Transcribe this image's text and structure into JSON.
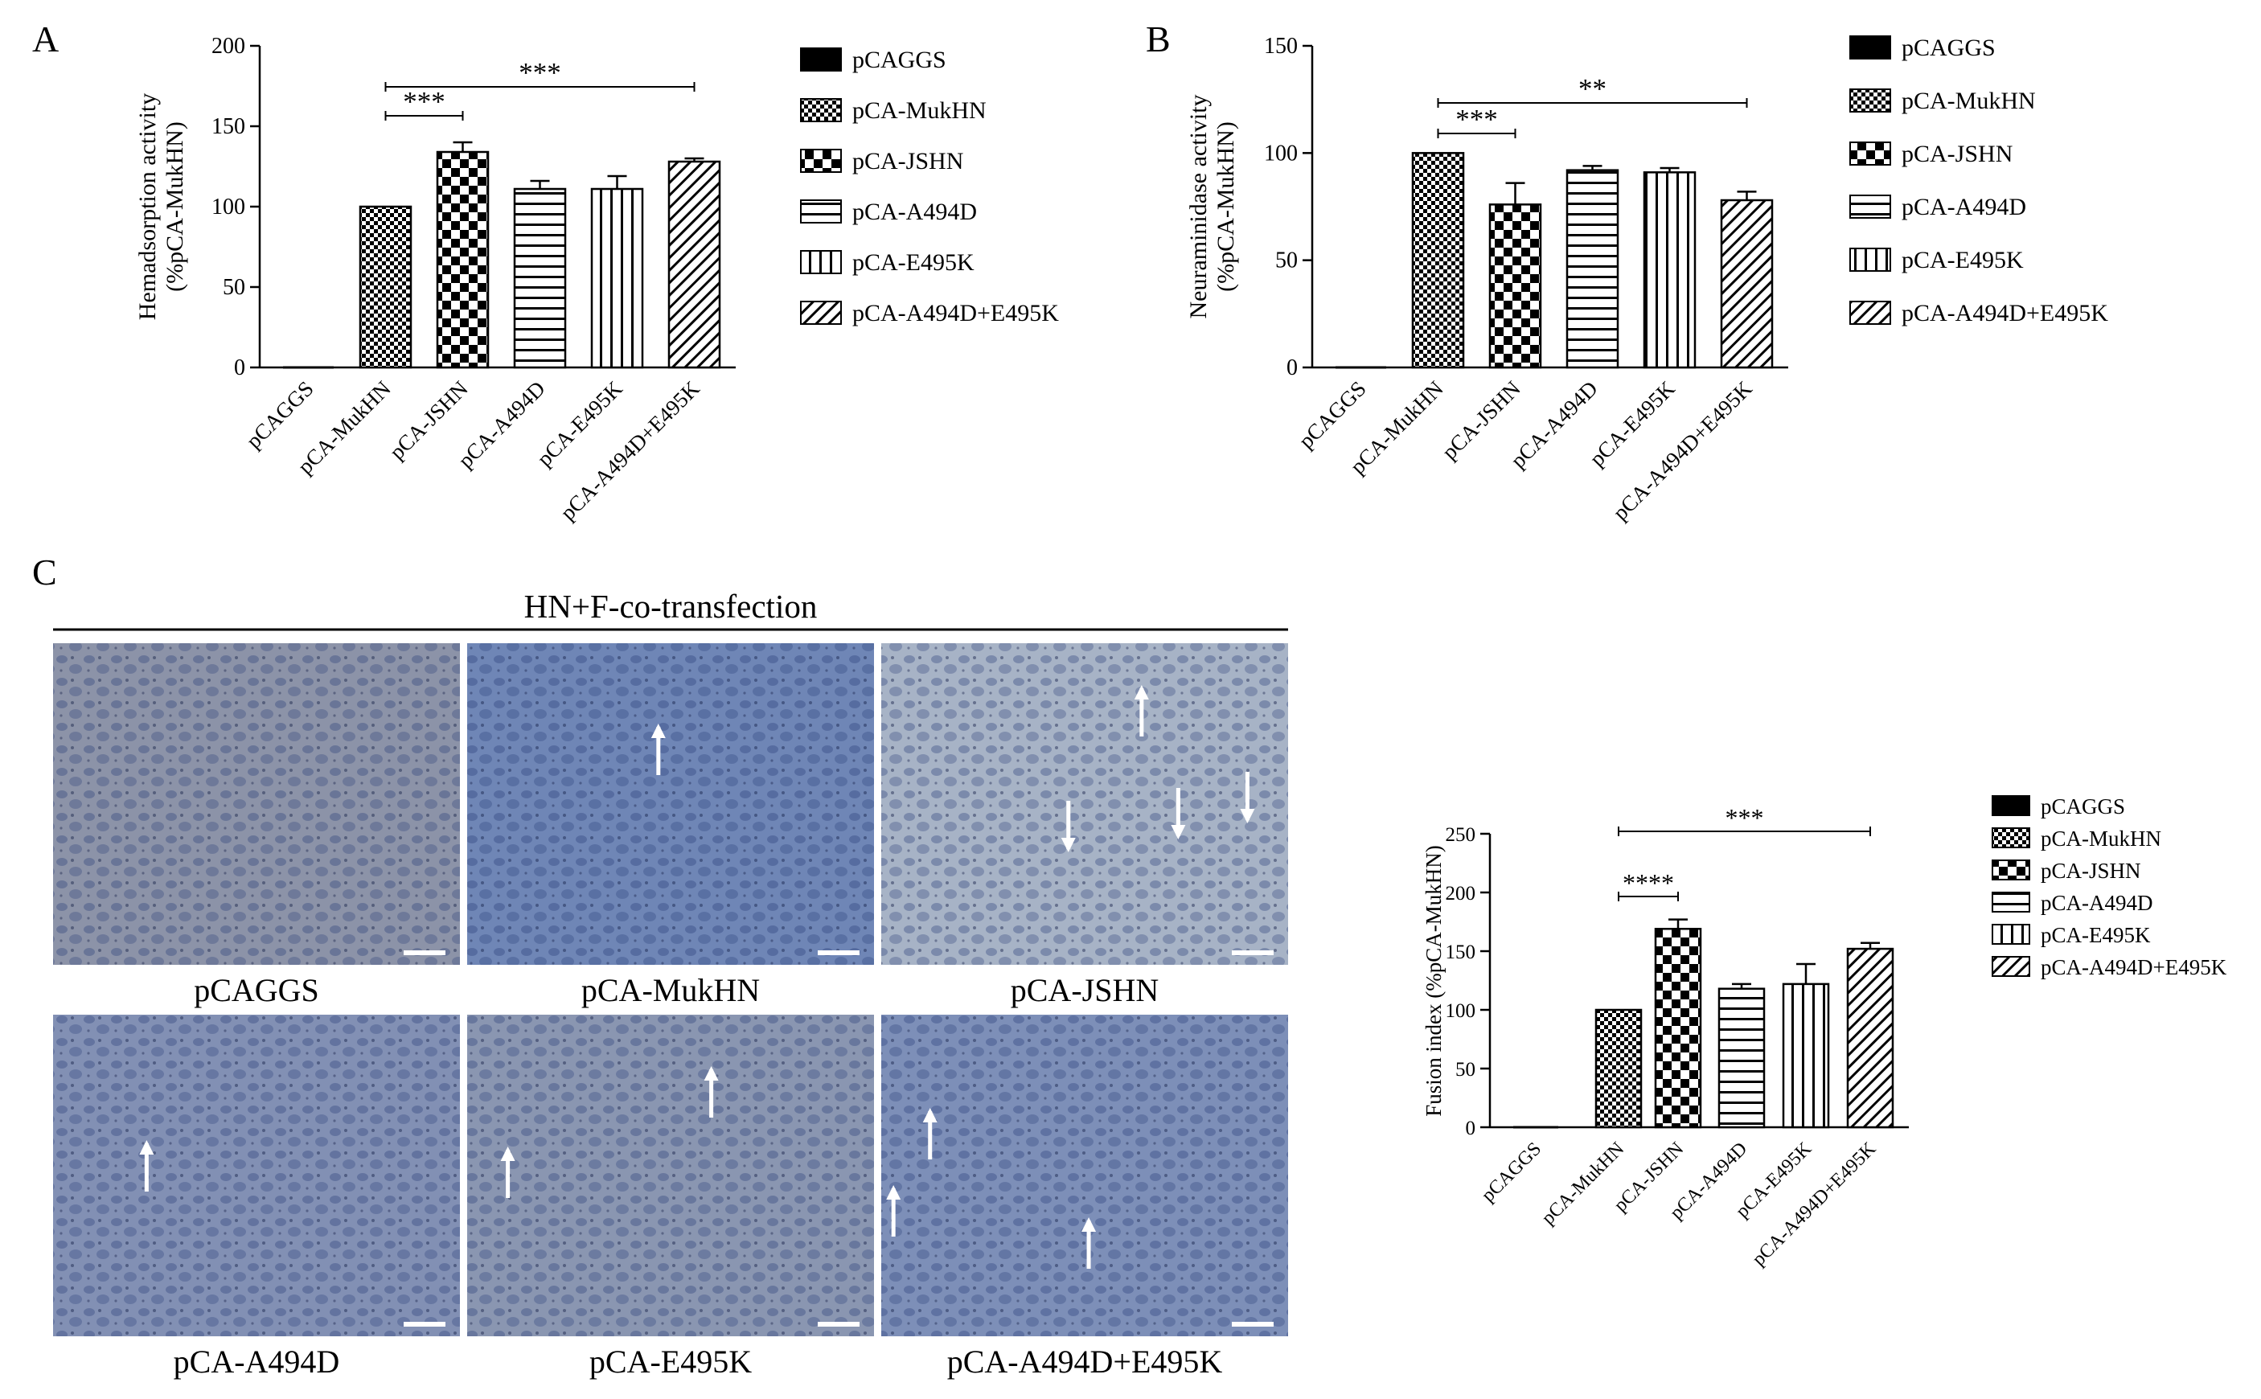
{
  "panels": {
    "a": "A",
    "b": "B",
    "c": "C"
  },
  "micrograph_section": {
    "title": "HN+F-co-transfection",
    "images": [
      {
        "label": "pCAGGS",
        "tone": "#8c93a8",
        "arrows": []
      },
      {
        "label": "pCA-MukHN",
        "tone": "#6f86b6",
        "arrows": [
          "up"
        ]
      },
      {
        "label": "pCA-JSHN",
        "tone": "#a7b3c6",
        "arrows": [
          "up",
          "down",
          "down",
          "down"
        ]
      },
      {
        "label": "pCA-A494D",
        "tone": "#8290b4",
        "arrows": [
          "up"
        ]
      },
      {
        "label": "pCA-E495K",
        "tone": "#8a96b1",
        "arrows": [
          "up",
          "up"
        ]
      },
      {
        "label": "pCA-A494D+E495K",
        "tone": "#7d8fb8",
        "arrows": [
          "up",
          "up",
          "up"
        ]
      }
    ]
  },
  "colors": {
    "ink": "#000000",
    "paper": "#ffffff"
  },
  "chart_data": [
    {
      "id": "A",
      "type": "bar",
      "ylabel_lines": [
        "Hemadsorption activity",
        "(%pCA-MukHN)"
      ],
      "categories": [
        "pCAGGS",
        "pCA-MukHN",
        "pCA-JSHN",
        "pCA-A494D",
        "pCA-E495K",
        "pCA-A494D+E495K"
      ],
      "values": [
        0,
        100,
        134,
        111,
        111,
        128
      ],
      "errors": [
        0,
        0,
        6,
        5,
        8,
        2
      ],
      "ylim": [
        0,
        200
      ],
      "yticks": [
        0,
        50,
        100,
        150,
        200
      ],
      "patterns": [
        "solid",
        "fine-check",
        "coarse-check",
        "horizontal",
        "vertical",
        "diagonal"
      ],
      "legend": [
        "pCAGGS",
        "pCA-MukHN",
        "pCA-JSHN",
        "pCA-A494D",
        "pCA-E495K",
        "pCA-A494D+E495K"
      ],
      "legend_position": "right",
      "significance": [
        {
          "from": 1,
          "to": 2,
          "label": "***"
        },
        {
          "from": 1,
          "to": 5,
          "label": "***"
        }
      ]
    },
    {
      "id": "B",
      "type": "bar",
      "ylabel_lines": [
        "Neuraminidase activity",
        "(%pCA-MukHN)"
      ],
      "categories": [
        "pCAGGS",
        "pCA-MukHN",
        "pCA-JSHN",
        "pCA-A494D",
        "pCA-E495K",
        "pCA-A494D+E495K"
      ],
      "values": [
        0,
        100,
        76,
        92,
        91,
        78
      ],
      "errors": [
        0,
        0,
        10,
        2,
        2,
        4
      ],
      "ylim": [
        0,
        150
      ],
      "yticks": [
        0,
        50,
        100,
        150
      ],
      "patterns": [
        "solid",
        "fine-check",
        "coarse-check",
        "horizontal",
        "vertical",
        "diagonal"
      ],
      "legend": [
        "pCAGGS",
        "pCA-MukHN",
        "pCA-JSHN",
        "pCA-A494D",
        "pCA-E495K",
        "pCA-A494D+E495K"
      ],
      "legend_position": "right",
      "significance": [
        {
          "from": 1,
          "to": 2,
          "label": "***"
        },
        {
          "from": 1,
          "to": 5,
          "label": "**"
        }
      ]
    },
    {
      "id": "C",
      "type": "bar",
      "ylabel_lines": [
        "Fusion index (%pCA-MukHN)"
      ],
      "categories": [
        "pCAGGS",
        "pCA-MukHN",
        "pCA-JSHN",
        "pCA-A494D",
        "pCA-E495K",
        "pCA-A494D+E495K"
      ],
      "values": [
        0,
        100,
        169,
        118,
        122,
        152
      ],
      "errors": [
        0,
        0,
        8,
        4,
        17,
        5
      ],
      "ylim": [
        0,
        250
      ],
      "yticks": [
        0,
        50,
        100,
        150,
        200,
        250
      ],
      "patterns": [
        "solid",
        "fine-check",
        "coarse-check",
        "horizontal",
        "vertical",
        "diagonal"
      ],
      "legend": [
        "pCAGGS",
        "pCA-MukHN",
        "pCA-JSHN",
        "pCA-A494D",
        "pCA-E495K",
        "pCA-A494D+E495K"
      ],
      "legend_position": "right",
      "significance": [
        {
          "from": 1,
          "to": 2,
          "label": "****"
        },
        {
          "from": 1,
          "to": 5,
          "label": "***"
        }
      ]
    }
  ]
}
